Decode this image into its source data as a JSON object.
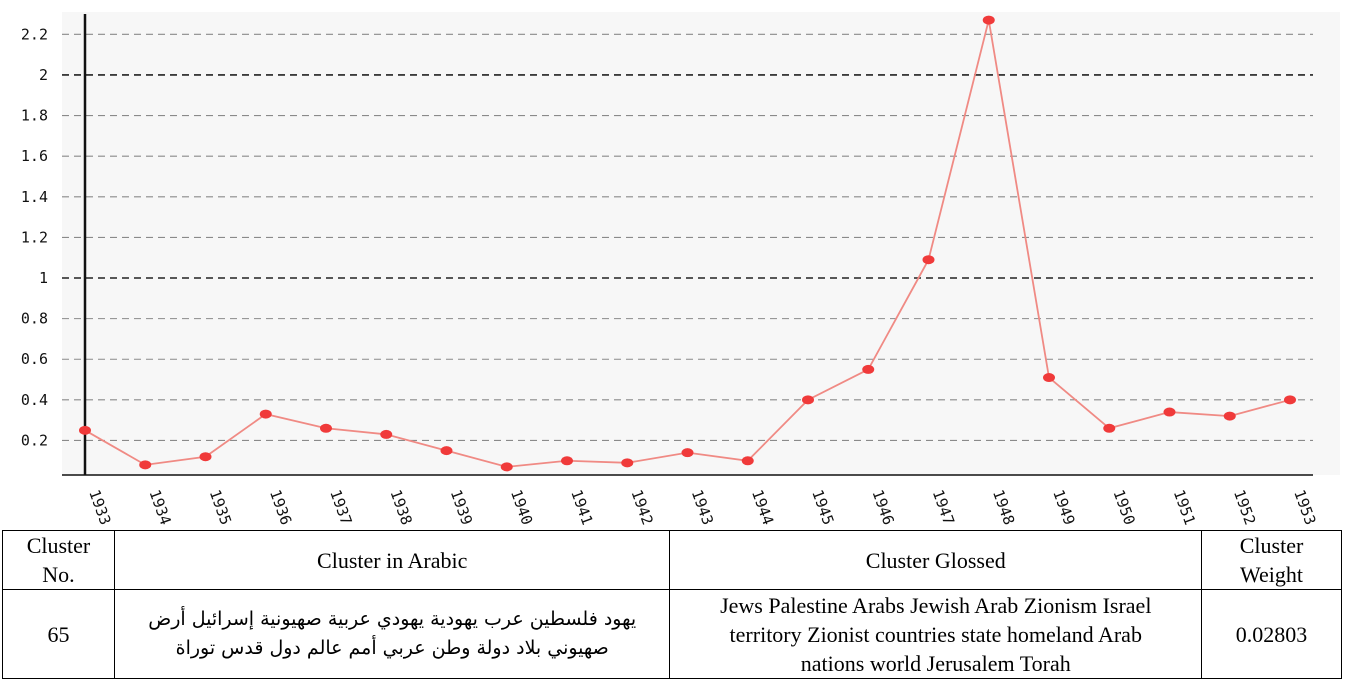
{
  "chart_data": {
    "type": "line",
    "categories": [
      "1933",
      "1934",
      "1935",
      "1936",
      "1937",
      "1938",
      "1939",
      "1940",
      "1941",
      "1942",
      "1943",
      "1944",
      "1945",
      "1946",
      "1947",
      "1948",
      "1949",
      "1950",
      "1951",
      "1952",
      "1953"
    ],
    "series": [
      {
        "values": [
          0.25,
          0.08,
          0.12,
          0.33,
          0.26,
          0.23,
          0.15,
          0.07,
          0.1,
          0.09,
          0.14,
          0.1,
          0.4,
          0.55,
          1.09,
          2.27,
          0.51,
          0.26,
          0.34,
          0.32,
          0.4
        ]
      }
    ],
    "y_ticks": [
      "0.2",
      "0.4",
      "0.6",
      "0.8",
      "1",
      "1.2",
      "1.4",
      "1.6",
      "1.8",
      "2",
      "2.2"
    ],
    "ylim": [
      0.03,
      2.3
    ],
    "grid": true,
    "colors": {
      "line": "#f08a84",
      "marker": "#f03a3a",
      "grid": "#8a8a8a",
      "grid_major": "#222222",
      "background": "#f7f7f7"
    }
  },
  "table": {
    "headers": [
      "Cluster No.",
      "Cluster in Arabic",
      "Cluster Glossed",
      "Cluster Weight"
    ],
    "header_lines": [
      [
        "Cluster",
        "No."
      ],
      [
        "Cluster in Arabic"
      ],
      [
        "Cluster Glossed"
      ],
      [
        "Cluster",
        "Weight"
      ]
    ],
    "row": {
      "number": "65",
      "arabic_lines": [
        "يهود فلسطين عرب يهودية يهودي عربية صهيونية إسرائيل أرض",
        "صهيوني بلاد دولة وطن عربي أمم عالم دول قدس توراة"
      ],
      "gloss_lines": [
        "Jews Palestine Arabs Jewish Arab Zionism Israel",
        "territory Zionist countries state homeland Arab",
        "nations world Jerusalem Torah"
      ],
      "weight": "0.02803"
    }
  }
}
